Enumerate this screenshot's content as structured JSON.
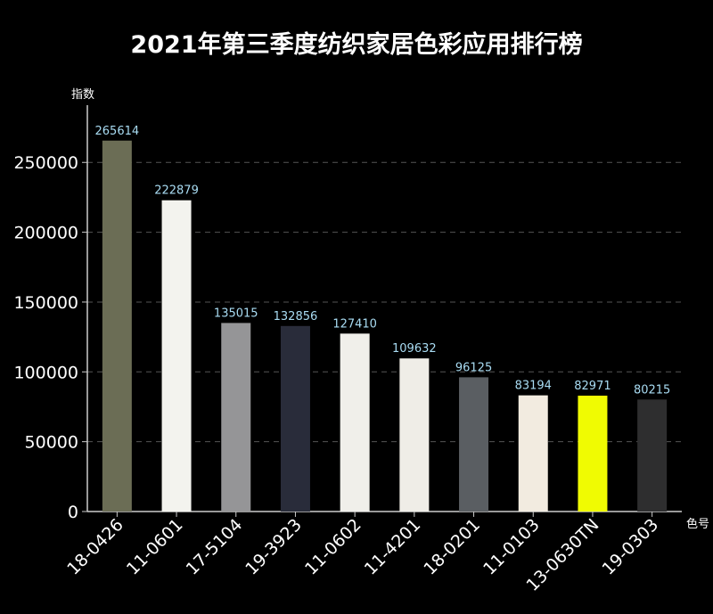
{
  "chart_data": {
    "type": "bar",
    "title": "2021年第三季度纺织家居色彩应用排行榜",
    "xlabel": "色号",
    "ylabel": "指数",
    "categories": [
      "18-0426",
      "11-0601",
      "17-5104",
      "19-3923",
      "11-0602",
      "11-4201",
      "18-0201",
      "11-0103",
      "13-0630TN",
      "19-0303"
    ],
    "values": [
      265614,
      222879,
      135015,
      132856,
      127410,
      109632,
      96125,
      83194,
      82971,
      80215
    ],
    "colors": [
      "#6b6d55",
      "#f3f3ee",
      "#959597",
      "#292c3a",
      "#f0efea",
      "#efede7",
      "#5a5e62",
      "#f2ebe0",
      "#f0fb02",
      "#2e2e2f"
    ],
    "yticks": [
      0,
      50000,
      100000,
      150000,
      200000,
      250000
    ],
    "ylim": [
      0,
      291000
    ],
    "grid": true,
    "label_color": "#a9dcf3"
  }
}
